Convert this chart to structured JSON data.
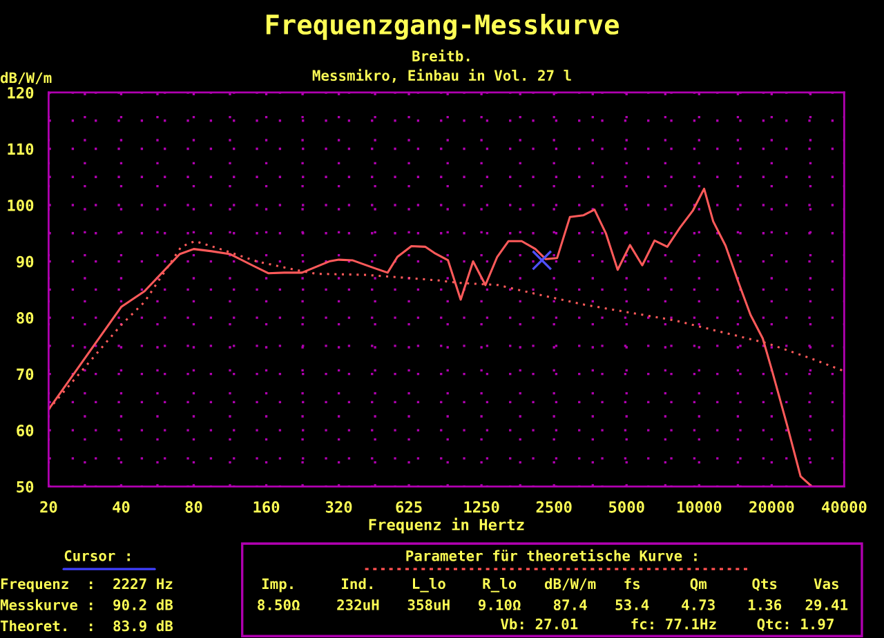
{
  "chart_data": {
    "type": "line",
    "title": "Frequenzgang-Messkurve",
    "subtitle": "Breitb.\nMessmikro, Einbau in Vol. 27 l",
    "xlabel": "Frequenz in Hertz",
    "ylabel": "dB/W/m",
    "log": "x",
    "xlim": [
      20,
      40000
    ],
    "ylim": [
      50,
      120
    ],
    "xticks": [
      20,
      {
        "value": 28.28,
        "label": null
      },
      40,
      {
        "value": 56.57,
        "label": null
      },
      80,
      {
        "value": 113.1,
        "label": null
      },
      160,
      {
        "value": 226.3,
        "label": null
      },
      320,
      {
        "value": 452.5,
        "label": null
      },
      625,
      {
        "value": 905.1,
        "label": null
      },
      1250,
      {
        "value": 1810,
        "label": null
      },
      2500,
      {
        "value": 3620,
        "label": null
      },
      5000,
      {
        "value": 7241,
        "label": null
      },
      10000,
      {
        "value": 14482,
        "label": null
      },
      20000,
      {
        "value": 28963,
        "label": null
      },
      40000
    ],
    "yticks": [
      50,
      {
        "value": 55,
        "label": null
      },
      60,
      {
        "value": 65,
        "label": null
      },
      70,
      {
        "value": 75,
        "label": null
      },
      80,
      {
        "value": 85,
        "label": null
      },
      90,
      {
        "value": 95,
        "label": null
      },
      100,
      {
        "value": 105,
        "label": null
      },
      110,
      {
        "value": 115,
        "label": null
      },
      120
    ],
    "grid": true,
    "legend": false,
    "series": [
      {
        "color": "#ff5a5a",
        "line_style": "solid",
        "x": [
          20,
          40,
          50,
          70,
          80,
          95,
          113,
          140,
          163,
          190,
          225,
          292,
          320,
          364,
          450,
          510,
          560,
          640,
          730,
          797,
          908,
          1025,
          1154,
          1298,
          1453,
          1619,
          1836,
          2092,
          2312,
          2576,
          2911,
          3316,
          3680,
          4103,
          4593,
          5166,
          5809,
          6532,
          7378,
          8331,
          9413,
          10490,
          11440,
          12870,
          14530,
          16340,
          18370,
          20040,
          23140,
          26360,
          29370,
          40000
        ],
        "values": [
          63.7,
          81.9,
          84.7,
          91.3,
          92.2,
          91.8,
          91.3,
          89.3,
          87.9,
          88.0,
          88.0,
          90.0,
          90.3,
          90.2,
          88.8,
          88.0,
          90.8,
          92.7,
          92.6,
          91.5,
          90.2,
          83.2,
          90.0,
          85.8,
          90.8,
          93.6,
          93.6,
          92.2,
          90.4,
          90.6,
          97.9,
          98.2,
          99.2,
          95.0,
          88.5,
          92.9,
          89.3,
          93.7,
          92.6,
          96.0,
          99.0,
          102.9,
          97.1,
          92.8,
          86.4,
          80.5,
          76.3,
          70.7,
          61.0,
          51.8,
          50.0,
          50.0
        ]
      },
      {
        "color": "#ff5a5a",
        "line_style": "dotted",
        "x": [
          20,
          40,
          50,
          71,
          81,
          103,
          146,
          206,
          257,
          416,
          640,
          836,
          993,
          1460,
          2160,
          3348,
          5166,
          7960,
          12250,
          19000,
          29370,
          40000
        ],
        "values": [
          63.7,
          78.7,
          82.8,
          92.6,
          93.6,
          92.2,
          90.0,
          88.6,
          87.8,
          87.6,
          87.0,
          86.6,
          86.2,
          85.8,
          84.1,
          82.3,
          80.9,
          79.5,
          77.5,
          75.5,
          72.7,
          70.5
        ]
      },
      {
        "type": "scatter",
        "marker": "cross",
        "color": "#5050ff",
        "x": [
          2227
        ],
        "values": [
          90.2
        ]
      }
    ],
    "annotations": [
      "Cursor :",
      "Frequenz  :  2227 Hz",
      "Messkurve :  90.2 dB",
      "Theoret.  :  83.9 dB",
      "Parameter für theoretische Kurve :",
      "Imp.",
      "Ind.",
      "L_lo",
      "R_lo",
      "dB/W/m",
      "fs",
      "Qm",
      "Qts",
      "Vas",
      "8.50Ω",
      "232uH",
      "358uH",
      "9.10Ω",
      "87.4",
      "53.4",
      "4.73",
      "1.36",
      "29.41",
      "Vb: 27.01",
      "fc: 77.1Hz",
      "Qtc: 1.97"
    ]
  }
}
